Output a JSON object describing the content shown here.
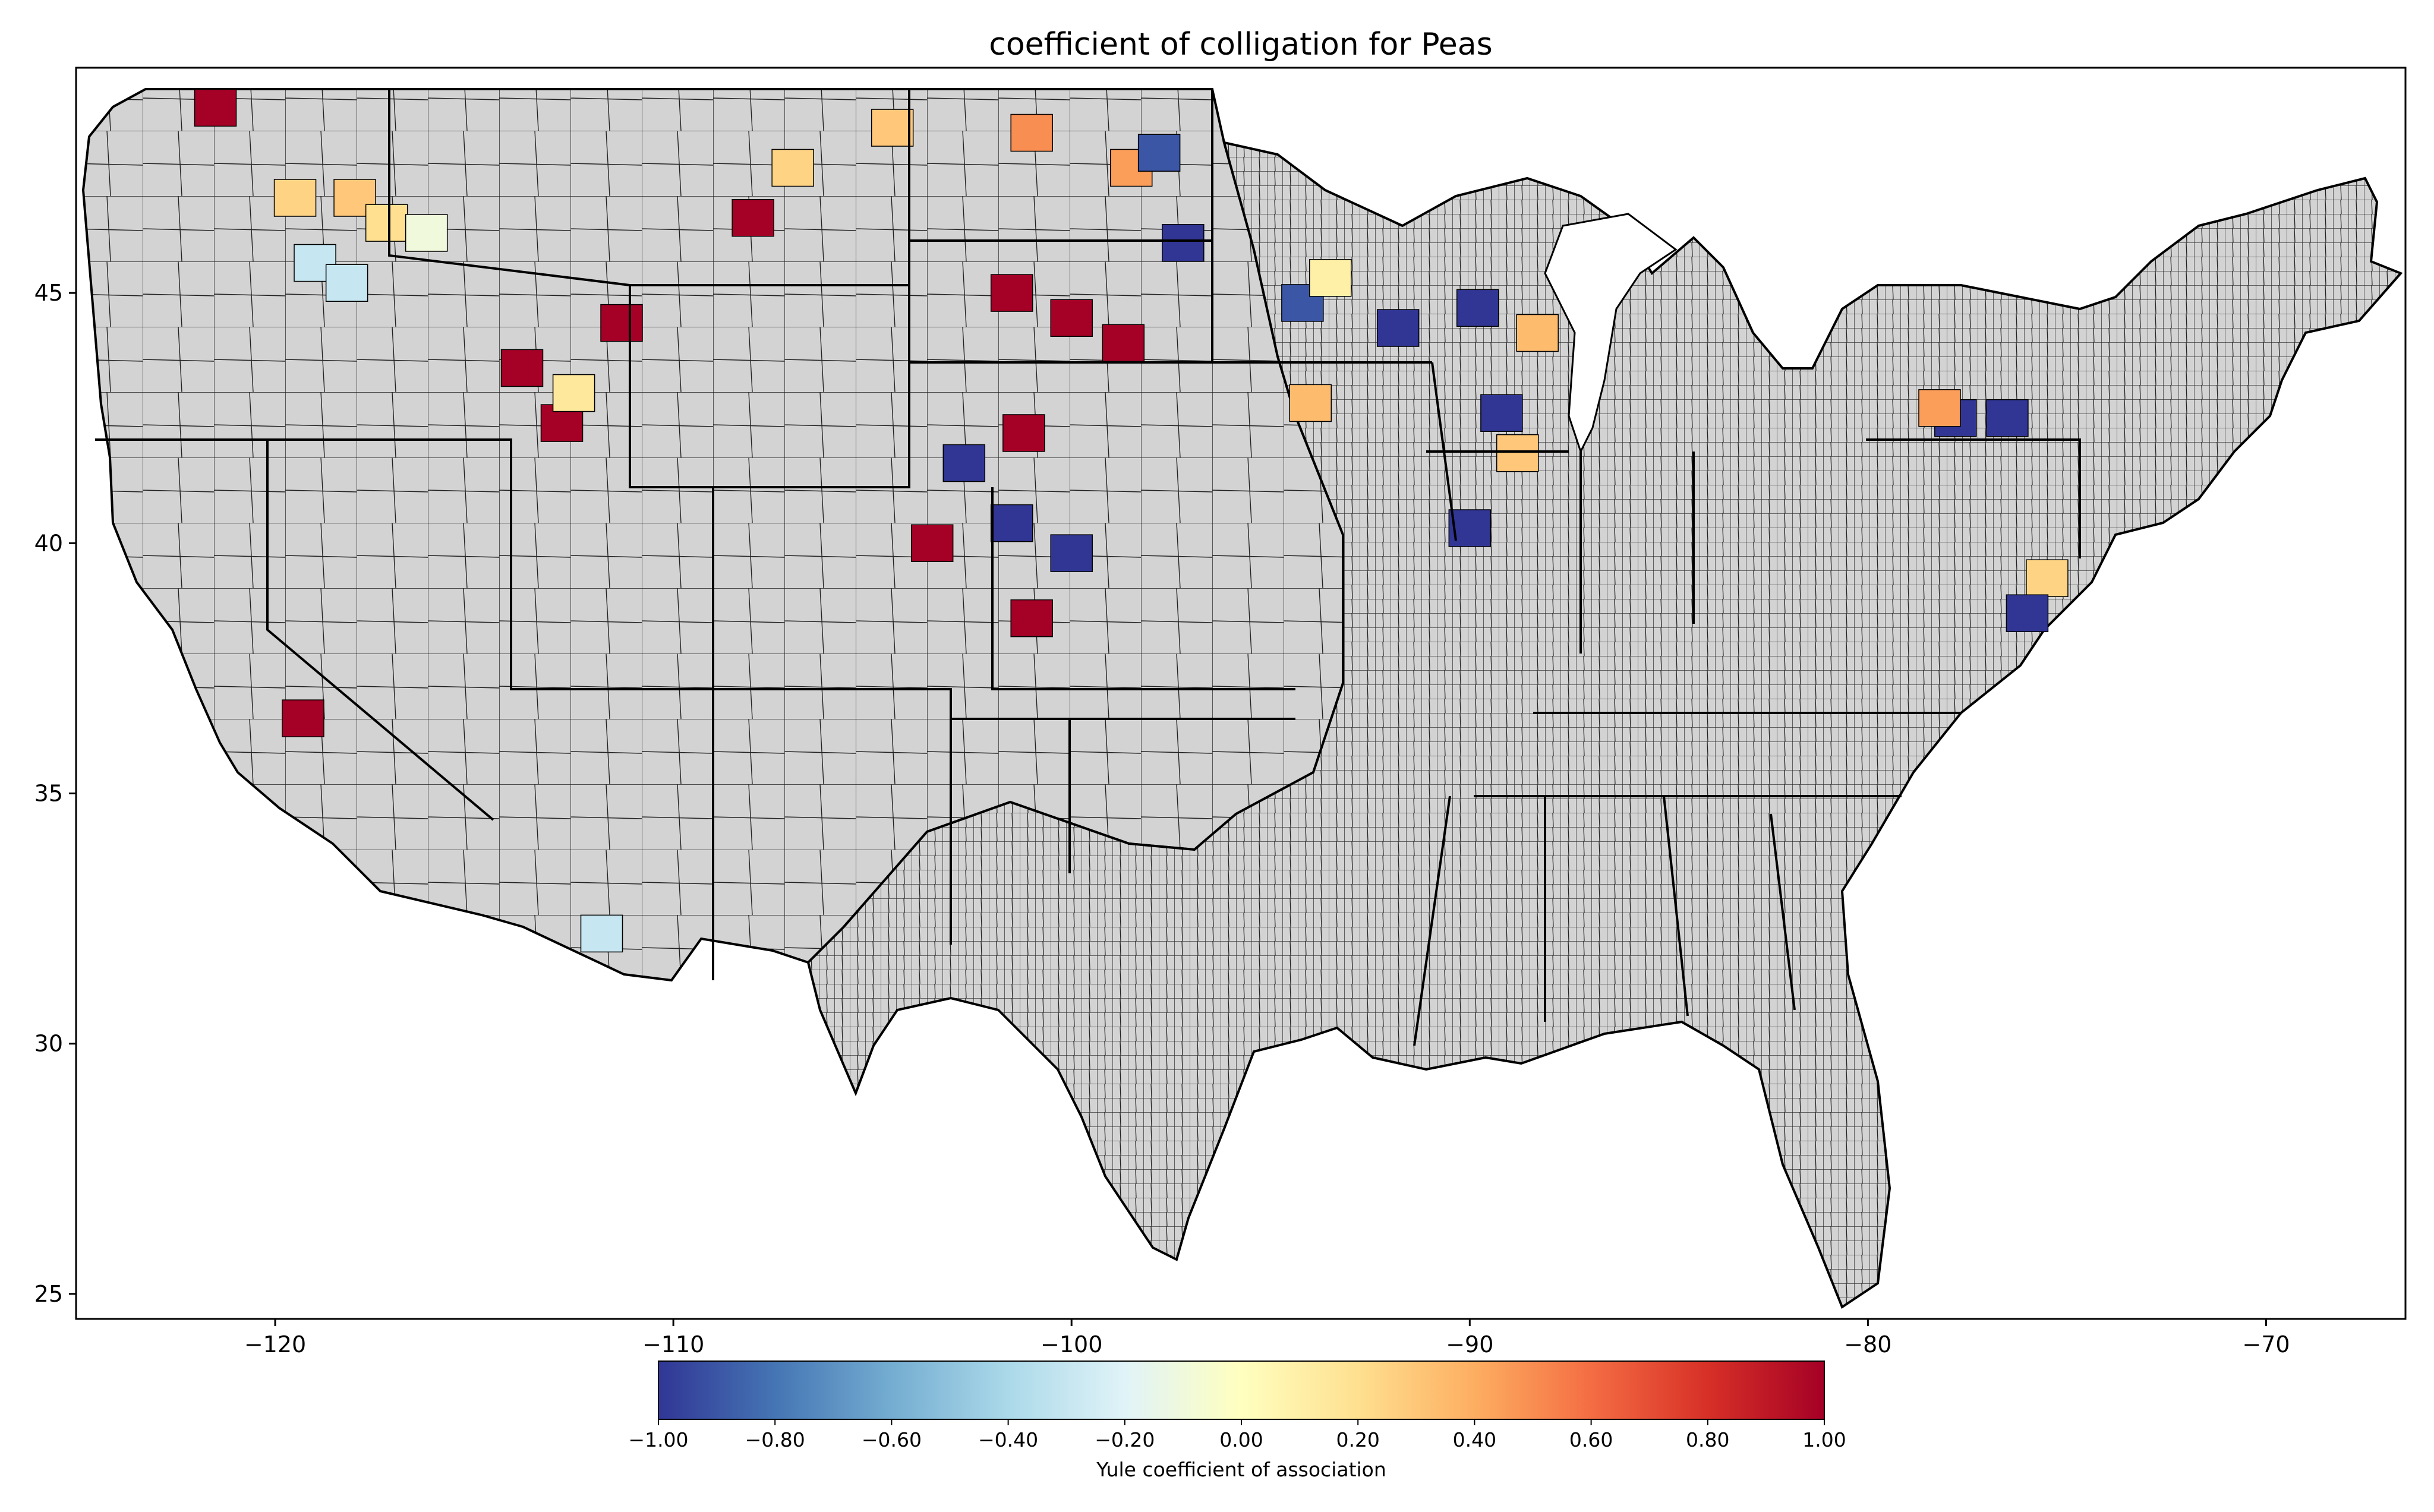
{
  "title": "coefficient of colligation for Peas",
  "x_axis": {
    "ticks": [
      -120,
      -110,
      -100,
      -90,
      -80,
      -70
    ],
    "tick_labels": [
      "−120",
      "−110",
      "−100",
      "−90",
      "−80",
      "−70"
    ],
    "range": [
      -125,
      -66.5
    ]
  },
  "y_axis": {
    "ticks": [
      25,
      30,
      35,
      40,
      45
    ],
    "tick_labels": [
      "25",
      "30",
      "35",
      "40",
      "45"
    ],
    "range": [
      24.5,
      49.5
    ]
  },
  "colorbar": {
    "label": "Yule coefficient of association",
    "range": [
      -1.0,
      1.0
    ],
    "ticks": [
      -1.0,
      -0.8,
      -0.6,
      -0.4,
      -0.2,
      0.0,
      0.2,
      0.4,
      0.6,
      0.8,
      1.0
    ],
    "tick_labels": [
      "−1.00",
      "−0.80",
      "−0.60",
      "−0.40",
      "−0.20",
      "0.00",
      "0.20",
      "0.40",
      "0.60",
      "0.80",
      "1.00"
    ],
    "colormap": "RdYlBu_r",
    "stops": [
      "#313695",
      "#4575b4",
      "#74add1",
      "#abd9e9",
      "#e0f3f8",
      "#ffffbf",
      "#fee090",
      "#fdae61",
      "#f46d43",
      "#d73027",
      "#a50026"
    ]
  },
  "colors": {
    "no_data_fill": "#d3d3d3",
    "county_border": "#000000",
    "background": "#ffffff"
  },
  "chart_data": {
    "type": "heatmap",
    "map_type": "choropleth",
    "region": "contiguous United States (counties)",
    "title": "coefficient of colligation for Peas",
    "xlabel": "",
    "ylabel": "",
    "xlim": [
      -125,
      -66.5
    ],
    "ylim": [
      24.5,
      49.5
    ],
    "value_range": [
      -1.0,
      1.0
    ],
    "counties_with_values_approx": [
      {
        "lon": -121.5,
        "lat": 48.7,
        "value": 1.0
      },
      {
        "lon": -119.5,
        "lat": 46.9,
        "value": 0.25
      },
      {
        "lon": -118.0,
        "lat": 46.9,
        "value": 0.3
      },
      {
        "lon": -117.2,
        "lat": 46.4,
        "value": 0.2
      },
      {
        "lon": -116.2,
        "lat": 46.2,
        "value": -0.1
      },
      {
        "lon": -119.0,
        "lat": 45.6,
        "value": -0.3
      },
      {
        "lon": -118.2,
        "lat": 45.2,
        "value": -0.3
      },
      {
        "lon": -113.8,
        "lat": 43.5,
        "value": 1.0
      },
      {
        "lon": -112.8,
        "lat": 42.4,
        "value": 1.0
      },
      {
        "lon": -111.3,
        "lat": 44.4,
        "value": 1.0
      },
      {
        "lon": -112.5,
        "lat": 43.0,
        "value": 0.15
      },
      {
        "lon": -107.0,
        "lat": 47.5,
        "value": 0.25
      },
      {
        "lon": -104.5,
        "lat": 48.3,
        "value": 0.3
      },
      {
        "lon": -108.0,
        "lat": 46.5,
        "value": 1.0
      },
      {
        "lon": -101.0,
        "lat": 48.2,
        "value": 0.5
      },
      {
        "lon": -98.5,
        "lat": 47.5,
        "value": 0.45
      },
      {
        "lon": -97.2,
        "lat": 46.0,
        "value": -1.0
      },
      {
        "lon": -97.8,
        "lat": 47.8,
        "value": -0.9
      },
      {
        "lon": -101.5,
        "lat": 45.0,
        "value": 1.0
      },
      {
        "lon": -100.0,
        "lat": 44.5,
        "value": 1.0
      },
      {
        "lon": -98.7,
        "lat": 44.0,
        "value": 1.0
      },
      {
        "lon": -101.2,
        "lat": 42.2,
        "value": 1.0
      },
      {
        "lon": -102.7,
        "lat": 41.6,
        "value": -1.0
      },
      {
        "lon": -103.5,
        "lat": 40.0,
        "value": 1.0
      },
      {
        "lon": -101.5,
        "lat": 40.4,
        "value": -1.0
      },
      {
        "lon": -100.0,
        "lat": 39.8,
        "value": -1.0
      },
      {
        "lon": -101.0,
        "lat": 38.5,
        "value": 1.0
      },
      {
        "lon": -94.2,
        "lat": 44.8,
        "value": -0.9
      },
      {
        "lon": -93.5,
        "lat": 45.3,
        "value": 0.1
      },
      {
        "lon": -91.8,
        "lat": 44.3,
        "value": -1.0
      },
      {
        "lon": -94.0,
        "lat": 42.8,
        "value": 0.35
      },
      {
        "lon": -88.3,
        "lat": 44.2,
        "value": 0.35
      },
      {
        "lon": -89.8,
        "lat": 44.7,
        "value": -1.0
      },
      {
        "lon": -89.2,
        "lat": 42.6,
        "value": -1.0
      },
      {
        "lon": -90.0,
        "lat": 40.3,
        "value": -1.0
      },
      {
        "lon": -88.8,
        "lat": 41.8,
        "value": 0.3
      },
      {
        "lon": -77.8,
        "lat": 42.5,
        "value": -1.0
      },
      {
        "lon": -76.5,
        "lat": 42.5,
        "value": -1.0
      },
      {
        "lon": -78.2,
        "lat": 42.7,
        "value": 0.45
      },
      {
        "lon": -75.5,
        "lat": 39.3,
        "value": 0.25
      },
      {
        "lon": -76.0,
        "lat": 38.6,
        "value": -1.0
      },
      {
        "lon": -119.3,
        "lat": 36.5,
        "value": 1.0
      },
      {
        "lon": -111.8,
        "lat": 32.2,
        "value": -0.3
      }
    ]
  }
}
